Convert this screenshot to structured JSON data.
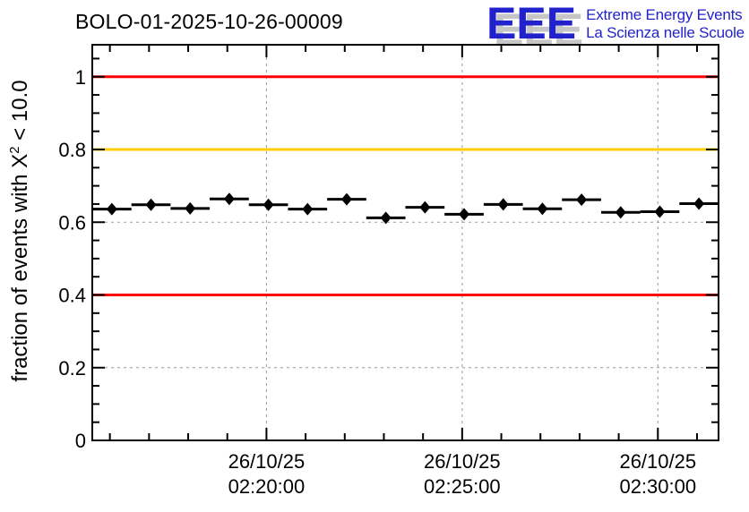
{
  "chart_data": {
    "type": "scatter",
    "title": "BOLO-01-2025-10-26-00009",
    "ylabel": {
      "prefix": "fraction of events with X",
      "sup": "2",
      "suffix": " < 10.0"
    },
    "x_axis": {
      "unit": "minutes relative to 02:20:00",
      "range": [
        -4.45,
        11.55
      ],
      "minor_tick_step": 1,
      "grid": true,
      "major_ticks": [
        {
          "minutes": 0,
          "date": "26/10/25",
          "time": "02:20:00"
        },
        {
          "minutes": 5,
          "date": "26/10/25",
          "time": "02:25:00"
        },
        {
          "minutes": 10,
          "date": "26/10/25",
          "time": "02:30:00"
        }
      ]
    },
    "y_axis": {
      "range": [
        0,
        1.088
      ],
      "major_ticks": [
        0,
        0.2,
        0.4,
        0.6,
        0.8,
        1
      ],
      "tick_labels": [
        "0",
        "0.2",
        "0.4",
        "0.6",
        "0.8",
        "1"
      ],
      "minor_tick_step": 0.05,
      "grid": true
    },
    "reference_lines": [
      {
        "y": 1.0,
        "color": "#ff0000"
      },
      {
        "y": 0.8,
        "color": "#ffcc00"
      },
      {
        "y": 0.4,
        "color": "#ff0000"
      }
    ],
    "series": [
      {
        "name": "fraction of events with chi2 < 10.0",
        "marker": "diamond",
        "color": "#000000",
        "x_halfwidth_minutes": 0.5,
        "points": [
          {
            "x_minutes": -3.95,
            "y": 0.636
          },
          {
            "x_minutes": -2.95,
            "y": 0.648
          },
          {
            "x_minutes": -1.95,
            "y": 0.638
          },
          {
            "x_minutes": -0.95,
            "y": 0.664
          },
          {
            "x_minutes": 0.05,
            "y": 0.648
          },
          {
            "x_minutes": 1.05,
            "y": 0.636
          },
          {
            "x_minutes": 2.05,
            "y": 0.663
          },
          {
            "x_minutes": 3.05,
            "y": 0.612
          },
          {
            "x_minutes": 4.05,
            "y": 0.641
          },
          {
            "x_minutes": 5.05,
            "y": 0.622
          },
          {
            "x_minutes": 6.05,
            "y": 0.649
          },
          {
            "x_minutes": 7.05,
            "y": 0.637
          },
          {
            "x_minutes": 8.05,
            "y": 0.662
          },
          {
            "x_minutes": 9.05,
            "y": 0.627
          },
          {
            "x_minutes": 10.05,
            "y": 0.629
          },
          {
            "x_minutes": 11.05,
            "y": 0.651
          }
        ]
      }
    ],
    "style": {
      "frame_color": "#000000",
      "grid_color": "#9a9a9a",
      "axis_label_font_px": 22,
      "ref_line_width": 3
    }
  },
  "logo": {
    "acronym": "EEE",
    "line1": "Extreme Energy Events",
    "line2": "La Scienza nelle Scuole",
    "color": "#2222cc",
    "shadow_color": "#c6c6c6"
  }
}
